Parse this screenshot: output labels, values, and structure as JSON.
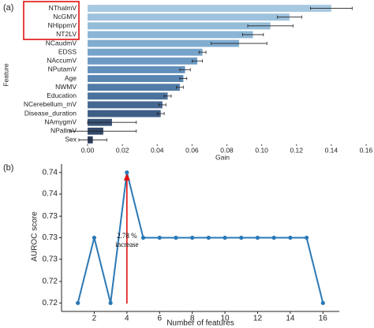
{
  "chart_data": [
    {
      "type": "barh",
      "panel_label": "(a)",
      "xlabel": "Gain",
      "ylabel": "Feature",
      "categories": [
        "NThalmV",
        "NcGMV",
        "NHippmV",
        "NT2LV",
        "NCaudmV",
        "EDSS",
        "NAccumV",
        "NPutamV",
        "Age",
        "NWMV",
        "Education",
        "NCerebellum_mV",
        "Disease_duration",
        "NAmygmV",
        "NPallmV",
        "Sex"
      ],
      "values": [
        0.14,
        0.116,
        0.105,
        0.095,
        0.087,
        0.066,
        0.063,
        0.056,
        0.055,
        0.053,
        0.046,
        0.043,
        0.042,
        0.014,
        0.009,
        0.003
      ],
      "errors": [
        0.012,
        0.007,
        0.013,
        0.006,
        0.016,
        0.002,
        0.003,
        0.003,
        0.002,
        0.002,
        0.002,
        0.002,
        0.002,
        0.014,
        0.019,
        0.008
      ],
      "colors": [
        "#a6c8e0",
        "#9dc2dd",
        "#94bcd9",
        "#8ab5d5",
        "#80acd0",
        "#76a3ca",
        "#6c9ac3",
        "#6290bb",
        "#5986b2",
        "#517ca8",
        "#4a729d",
        "#446891",
        "#3e5e85",
        "#395478",
        "#34496a",
        "#2f3f5c"
      ],
      "error_color": "#222222",
      "xlim": [
        -0.005,
        0.16
      ],
      "xticks": [
        {
          "value": 0,
          "label": "0.00"
        },
        0.02,
        0.04,
        0.06,
        0.08,
        {
          "value": 0.1,
          "label": "0.10"
        },
        0.12,
        0.14,
        0.16
      ]
    },
    {
      "type": "line",
      "panel_label": "(b)",
      "xlabel": "Number of features",
      "ylabel": "AUROC score",
      "x": [
        1,
        2,
        3,
        4,
        5,
        6,
        7,
        8,
        9,
        10,
        11,
        12,
        13,
        14,
        15,
        16
      ],
      "series": [
        {
          "name": "AUROC",
          "color": "#2a78b5",
          "values": [
            0.72,
            0.73,
            0.72,
            0.74,
            0.73,
            0.73,
            0.73,
            0.73,
            0.73,
            0.73,
            0.73,
            0.73,
            0.73,
            0.73,
            0.73,
            0.72
          ]
        }
      ],
      "annotation": [
        "2.78 %",
        "increase"
      ],
      "annotation_color": "#e01010",
      "xlim": [
        0,
        17
      ],
      "xticks": [
        2,
        4,
        6,
        8,
        10,
        12,
        14,
        16
      ],
      "ylim": [
        0.7187,
        0.7413
      ],
      "yticks": [
        0.72,
        {
          "value": 0.7233,
          "label": "0.72"
        },
        {
          "value": 0.7267,
          "label": "0.73"
        },
        0.73,
        {
          "value": 0.7333,
          "label": "0.73"
        },
        {
          "value": 0.7367,
          "label": "0.74"
        },
        0.74
      ]
    }
  ]
}
